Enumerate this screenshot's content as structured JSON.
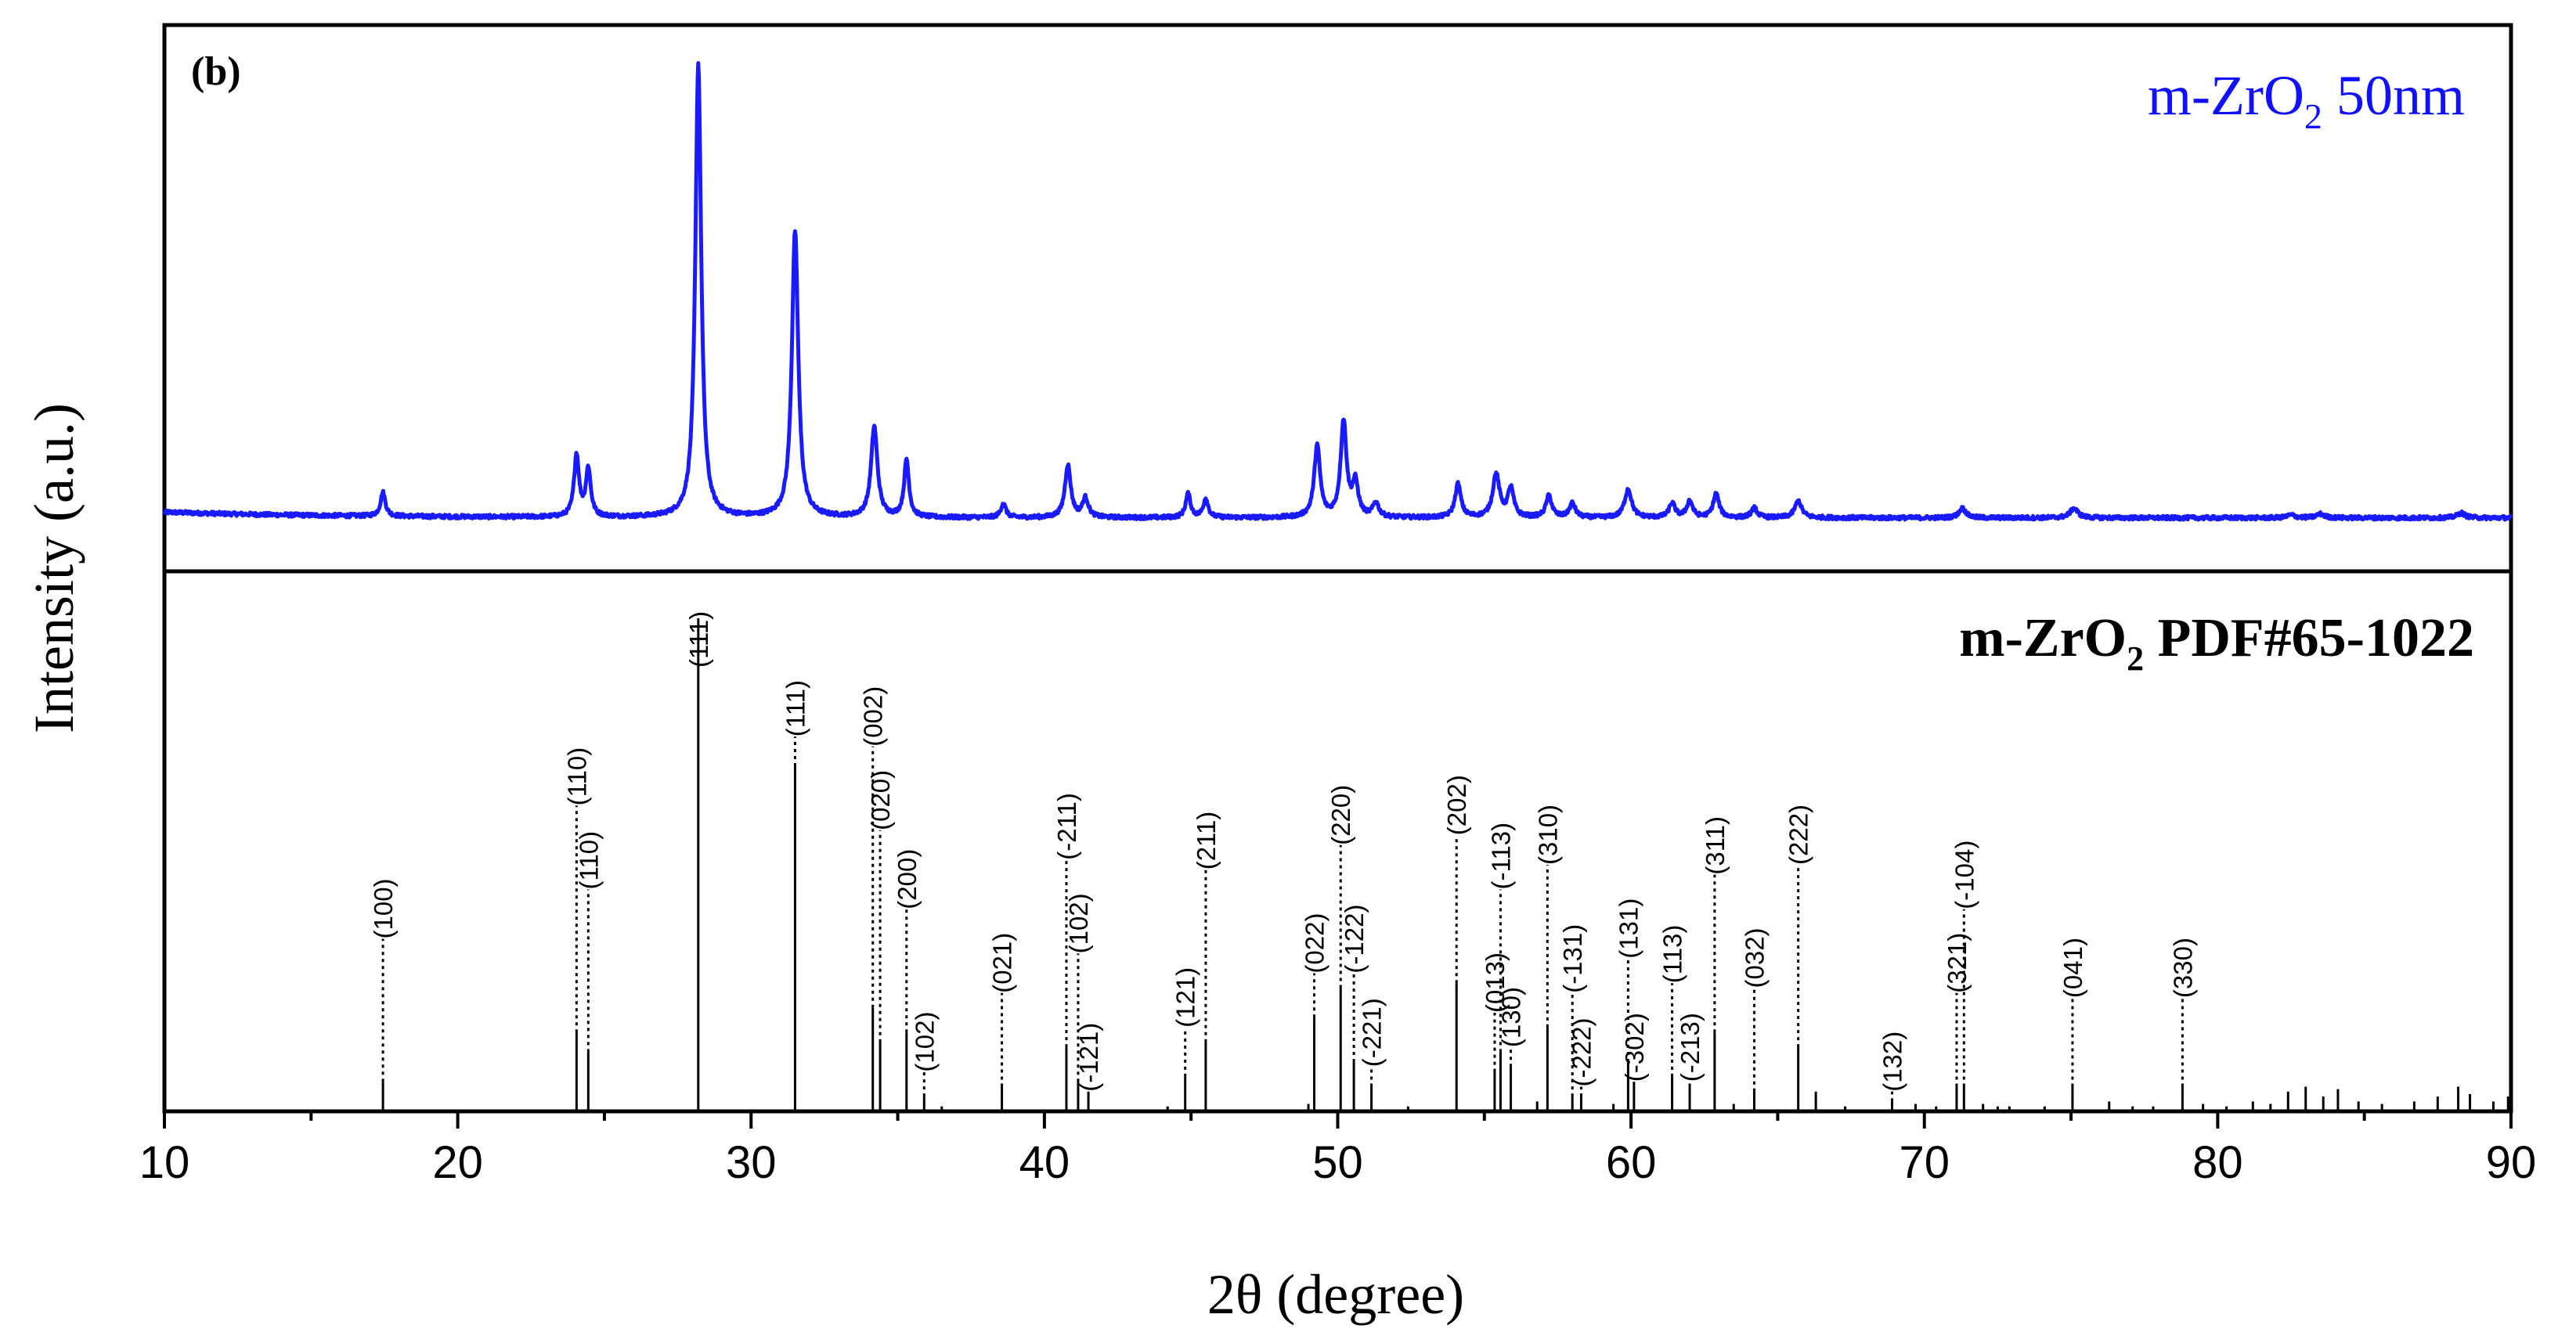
{
  "chart_data": {
    "type": "line",
    "panel_label": "(b)",
    "xlabel": "2θ (degree)",
    "ylabel": "Intensity (a.u.)",
    "xlim": [
      10,
      90
    ],
    "xticks": [
      10,
      20,
      30,
      40,
      50,
      60,
      70,
      80,
      90
    ],
    "grid": false,
    "top_panel": {
      "legend": {
        "main": "m-ZrO",
        "sub": "2",
        "suffix": " 50nm",
        "color": "#1010ff",
        "placement": "top-right"
      },
      "series_color": "#1a1aff",
      "baseline": 0.03,
      "peaks": [
        {
          "x": 17.45,
          "h": 0.05,
          "w": 0.1
        },
        {
          "x": 24.05,
          "h": 0.13,
          "w": 0.1
        },
        {
          "x": 24.45,
          "h": 0.1,
          "w": 0.1
        },
        {
          "x": 28.2,
          "h": 0.95,
          "w": 0.12
        },
        {
          "x": 31.5,
          "h": 0.6,
          "w": 0.13
        },
        {
          "x": 34.2,
          "h": 0.19,
          "w": 0.13
        },
        {
          "x": 35.3,
          "h": 0.12,
          "w": 0.1
        },
        {
          "x": 38.6,
          "h": 0.03,
          "w": 0.1
        },
        {
          "x": 40.8,
          "h": 0.11,
          "w": 0.12
        },
        {
          "x": 41.4,
          "h": 0.04,
          "w": 0.12
        },
        {
          "x": 44.9,
          "h": 0.05,
          "w": 0.1
        },
        {
          "x": 45.5,
          "h": 0.04,
          "w": 0.1
        },
        {
          "x": 49.3,
          "h": 0.15,
          "w": 0.12
        },
        {
          "x": 50.2,
          "h": 0.2,
          "w": 0.12
        },
        {
          "x": 50.6,
          "h": 0.07,
          "w": 0.12
        },
        {
          "x": 51.3,
          "h": 0.03,
          "w": 0.12
        },
        {
          "x": 54.1,
          "h": 0.07,
          "w": 0.12
        },
        {
          "x": 55.4,
          "h": 0.09,
          "w": 0.14
        },
        {
          "x": 55.9,
          "h": 0.06,
          "w": 0.12
        },
        {
          "x": 57.2,
          "h": 0.045,
          "w": 0.12
        },
        {
          "x": 58.0,
          "h": 0.03,
          "w": 0.12
        },
        {
          "x": 59.9,
          "h": 0.06,
          "w": 0.14
        },
        {
          "x": 61.4,
          "h": 0.03,
          "w": 0.12
        },
        {
          "x": 62.0,
          "h": 0.035,
          "w": 0.12
        },
        {
          "x": 62.9,
          "h": 0.05,
          "w": 0.12
        },
        {
          "x": 64.2,
          "h": 0.02,
          "w": 0.12
        },
        {
          "x": 65.7,
          "h": 0.035,
          "w": 0.14
        },
        {
          "x": 71.3,
          "h": 0.02,
          "w": 0.14
        },
        {
          "x": 75.1,
          "h": 0.02,
          "w": 0.16
        },
        {
          "x": 82.5,
          "h": 0.006,
          "w": 0.16
        },
        {
          "x": 83.5,
          "h": 0.008,
          "w": 0.16
        },
        {
          "x": 88.3,
          "h": 0.01,
          "w": 0.16
        }
      ]
    },
    "bottom_panel": {
      "legend": {
        "main": "m-ZrO",
        "sub": "2",
        "suffix": " PDF#65-1022",
        "placement": "top-right"
      },
      "reflections": [
        {
          "x": 17.45,
          "h": 0.06,
          "hkl": "(100)",
          "label_y": 0.35
        },
        {
          "x": 24.05,
          "h": 0.16,
          "hkl": "(110)",
          "label_y": 0.62
        },
        {
          "x": 24.45,
          "h": 0.12,
          "hkl": "(110)",
          "label_y": 0.45
        },
        {
          "x": 28.2,
          "h": 1.0,
          "hkl": "(111)",
          "label_y": 0.9
        },
        {
          "x": 31.5,
          "h": 0.7,
          "hkl": "(111)",
          "label_y": 0.76
        },
        {
          "x": 34.15,
          "h": 0.21,
          "hkl": "(002)",
          "label_y": 0.74
        },
        {
          "x": 34.4,
          "h": 0.14,
          "hkl": "(020)",
          "label_y": 0.57
        },
        {
          "x": 35.3,
          "h": 0.16,
          "hkl": "(200)",
          "label_y": 0.41
        },
        {
          "x": 35.9,
          "h": 0.03,
          "hkl": "(102)",
          "label_y": 0.08
        },
        {
          "x": 38.55,
          "h": 0.05,
          "hkl": "(021)",
          "label_y": 0.24
        },
        {
          "x": 40.75,
          "h": 0.13,
          "hkl": "(-211)",
          "label_y": 0.51
        },
        {
          "x": 41.15,
          "h": 0.06,
          "hkl": "(102)",
          "label_y": 0.32
        },
        {
          "x": 41.5,
          "h": 0.04,
          "hkl": "(-121)",
          "label_y": 0.04
        },
        {
          "x": 44.8,
          "h": 0.07,
          "hkl": "(121)",
          "label_y": 0.17
        },
        {
          "x": 45.5,
          "h": 0.14,
          "hkl": "(211)",
          "label_y": 0.49
        },
        {
          "x": 49.2,
          "h": 0.19,
          "hkl": "(022)",
          "label_y": 0.28
        },
        {
          "x": 50.1,
          "h": 0.25,
          "hkl": "(220)",
          "label_y": 0.54
        },
        {
          "x": 50.55,
          "h": 0.1,
          "hkl": "(-122)",
          "label_y": 0.28
        },
        {
          "x": 51.15,
          "h": 0.05,
          "hkl": "(-221)",
          "label_y": 0.09
        },
        {
          "x": 54.05,
          "h": 0.26,
          "hkl": "(202)",
          "label_y": 0.56
        },
        {
          "x": 55.35,
          "h": 0.08,
          "hkl": "(013)",
          "label_y": 0.2
        },
        {
          "x": 55.55,
          "h": 0.12,
          "hkl": "(-113)",
          "label_y": 0.45
        },
        {
          "x": 55.9,
          "h": 0.09,
          "hkl": "(130)",
          "label_y": 0.13
        },
        {
          "x": 57.15,
          "h": 0.17,
          "hkl": "(310)",
          "label_y": 0.5
        },
        {
          "x": 58.0,
          "h": 0.03,
          "hkl": "(-131)",
          "label_y": 0.24
        },
        {
          "x": 58.3,
          "h": 0.03,
          "hkl": "(-222)",
          "label_y": 0.05
        },
        {
          "x": 59.9,
          "h": 0.1,
          "hkl": "(131)",
          "label_y": 0.31
        },
        {
          "x": 60.1,
          "h": 0.06,
          "hkl": "(-302)",
          "label_y": 0.06
        },
        {
          "x": 61.4,
          "h": 0.07,
          "hkl": "(113)",
          "label_y": 0.26
        },
        {
          "x": 62.0,
          "h": 0.05,
          "hkl": "(-213)",
          "label_y": 0.06
        },
        {
          "x": 62.85,
          "h": 0.16,
          "hkl": "(311)",
          "label_y": 0.48
        },
        {
          "x": 64.2,
          "h": 0.04,
          "hkl": "(032)",
          "label_y": 0.25
        },
        {
          "x": 65.7,
          "h": 0.13,
          "hkl": "(222)",
          "label_y": 0.5
        },
        {
          "x": 68.9,
          "h": 0.02,
          "hkl": "(132)",
          "label_y": 0.04
        },
        {
          "x": 71.1,
          "h": 0.05,
          "hkl": "(321)",
          "label_y": 0.24
        },
        {
          "x": 71.35,
          "h": 0.05,
          "hkl": "(-104)",
          "label_y": 0.41
        },
        {
          "x": 75.05,
          "h": 0.05,
          "hkl": "(041)",
          "label_y": 0.23
        },
        {
          "x": 78.8,
          "h": 0.05,
          "hkl": "(330)",
          "label_y": 0.23
        }
      ],
      "minor_lines": [
        {
          "x": 36.5,
          "h": 0.01
        },
        {
          "x": 44.2,
          "h": 0.01
        },
        {
          "x": 49.0,
          "h": 0.015
        },
        {
          "x": 52.4,
          "h": 0.01
        },
        {
          "x": 56.8,
          "h": 0.02
        },
        {
          "x": 59.4,
          "h": 0.015
        },
        {
          "x": 63.5,
          "h": 0.015
        },
        {
          "x": 66.3,
          "h": 0.04
        },
        {
          "x": 67.3,
          "h": 0.01
        },
        {
          "x": 69.7,
          "h": 0.015
        },
        {
          "x": 70.4,
          "h": 0.01
        },
        {
          "x": 72.0,
          "h": 0.015
        },
        {
          "x": 72.5,
          "h": 0.01
        },
        {
          "x": 72.9,
          "h": 0.01
        },
        {
          "x": 74.1,
          "h": 0.01
        },
        {
          "x": 76.3,
          "h": 0.02
        },
        {
          "x": 77.1,
          "h": 0.01
        },
        {
          "x": 77.8,
          "h": 0.01
        },
        {
          "x": 79.5,
          "h": 0.015
        },
        {
          "x": 80.3,
          "h": 0.01
        },
        {
          "x": 81.2,
          "h": 0.02
        },
        {
          "x": 81.8,
          "h": 0.015
        },
        {
          "x": 82.4,
          "h": 0.04
        },
        {
          "x": 83.0,
          "h": 0.05
        },
        {
          "x": 83.6,
          "h": 0.03
        },
        {
          "x": 84.1,
          "h": 0.045
        },
        {
          "x": 84.8,
          "h": 0.02
        },
        {
          "x": 85.6,
          "h": 0.015
        },
        {
          "x": 86.7,
          "h": 0.02
        },
        {
          "x": 87.5,
          "h": 0.03
        },
        {
          "x": 88.2,
          "h": 0.05
        },
        {
          "x": 88.6,
          "h": 0.035
        },
        {
          "x": 89.4,
          "h": 0.02
        },
        {
          "x": 89.9,
          "h": 0.03
        }
      ]
    }
  }
}
